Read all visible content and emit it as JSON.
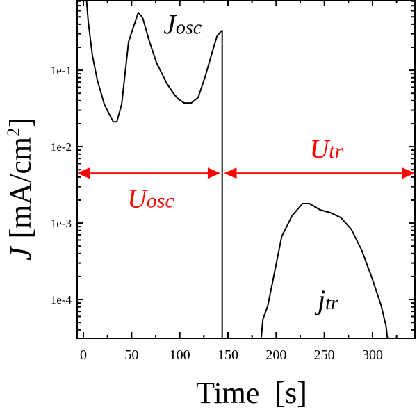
{
  "chart_data": {
    "type": "line",
    "title": "",
    "xlabel": "Time  [s]",
    "ylabel_main": "J",
    "ylabel_unit": "[mA/cm",
    "ylabel_sup": "2",
    "ylabel_close": "]",
    "xlim": [
      -6.5,
      344
    ],
    "ylim": [
      3.1e-05,
      0.83
    ],
    "yscale": "log",
    "grid": false,
    "xticks": [
      0,
      50,
      100,
      150,
      200,
      250,
      300
    ],
    "xtick_labels": [
      "0",
      "50",
      "100",
      "150",
      "200",
      "250",
      "300"
    ],
    "yticks": [
      0.1,
      0.01,
      0.001,
      0.0001
    ],
    "ytick_labels": [
      "1e-1",
      "1e-2",
      "1e-3",
      "1e-4"
    ],
    "series": [
      {
        "name": "J_osc",
        "label_main": "J",
        "label_sub": "osc",
        "color": "#000000",
        "x": [
          3,
          5,
          9.4,
          14.4,
          21.7,
          25.3,
          31,
          34.7,
          39.7,
          46.9,
          57,
          61.4,
          68.6,
          75.8,
          86.6,
          93.9,
          98.9,
          104.7,
          111.9,
          119.1,
          126.4,
          133.6,
          138.6,
          143,
          144,
          144
        ],
        "y": [
          0.9,
          0.44,
          0.155,
          0.0746,
          0.0359,
          0.0291,
          0.0212,
          0.0212,
          0.0359,
          0.236,
          0.569,
          0.491,
          0.236,
          0.126,
          0.067,
          0.049,
          0.0415,
          0.0374,
          0.0374,
          0.0442,
          0.083,
          0.172,
          0.279,
          0.324,
          0.33,
          3.1e-05
        ]
      },
      {
        "name": "j_tr",
        "label_main": "j",
        "label_sub": "tr",
        "color": "#000000",
        "x": [
          184.5,
          186.3,
          191.3,
          197.1,
          205.8,
          216.6,
          227.4,
          234.7,
          245.5,
          256.3,
          267.1,
          278,
          288.8,
          299.6,
          309,
          314,
          315.5
        ],
        "y": [
          3.1e-05,
          5.5e-05,
          8.3e-05,
          0.00019,
          0.00067,
          0.00125,
          0.0018,
          0.0018,
          0.00149,
          0.00137,
          0.00118,
          0.00083,
          0.00044,
          0.00019,
          8.3e-05,
          4.5e-05,
          3.1e-05
        ]
      }
    ],
    "annotations": [
      {
        "name": "U_osc",
        "main": "U",
        "sub": "osc",
        "color": "#ff0000",
        "arrow_from": -6.5,
        "arrow_to": 142,
        "arrow_y": 0.0045,
        "label_x": 70,
        "label_y": 0.0016
      },
      {
        "name": "U_tr",
        "main": "U",
        "sub": "tr",
        "color": "#ff0000",
        "arrow_from": 146,
        "arrow_to": 344,
        "arrow_y": 0.0045,
        "label_x": 252,
        "label_y": 0.0072
      }
    ],
    "series_labels_pos": [
      {
        "x": 83,
        "y": 0.3
      },
      {
        "x": 243,
        "y": 7.5e-05
      }
    ]
  }
}
